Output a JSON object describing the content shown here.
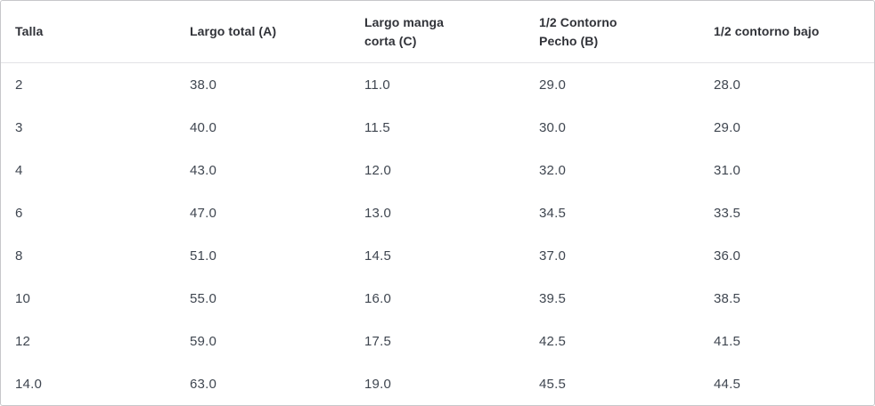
{
  "chart_data": {
    "type": "table",
    "columns": [
      "Talla",
      "Largo total (A)",
      "Largo manga corta (C)",
      "1/2 Contorno Pecho (B)",
      "1/2 contorno bajo"
    ],
    "rows": [
      [
        "2",
        "38.0",
        "11.0",
        "29.0",
        "28.0"
      ],
      [
        "3",
        "40.0",
        "11.5",
        "30.0",
        "29.0"
      ],
      [
        "4",
        "43.0",
        "12.0",
        "32.0",
        "31.0"
      ],
      [
        "6",
        "47.0",
        "13.0",
        "34.5",
        "33.5"
      ],
      [
        "8",
        "51.0",
        "14.5",
        "37.0",
        "36.0"
      ],
      [
        "10",
        "55.0",
        "16.0",
        "39.5",
        "38.5"
      ],
      [
        "12",
        "59.0",
        "17.5",
        "42.5",
        "41.5"
      ],
      [
        "14.0",
        "63.0",
        "19.0",
        "45.5",
        "44.5"
      ]
    ],
    "layout": {
      "grid": "header-divider-only",
      "column_alignment": "left",
      "column_count": 5,
      "row_count": 8
    }
  },
  "colors": {
    "background": "#ffffff",
    "outer_border": "#c7c7ca",
    "header_divider": "#e2e2e6",
    "header_text": "#303238",
    "cell_text": "#3f4650"
  }
}
